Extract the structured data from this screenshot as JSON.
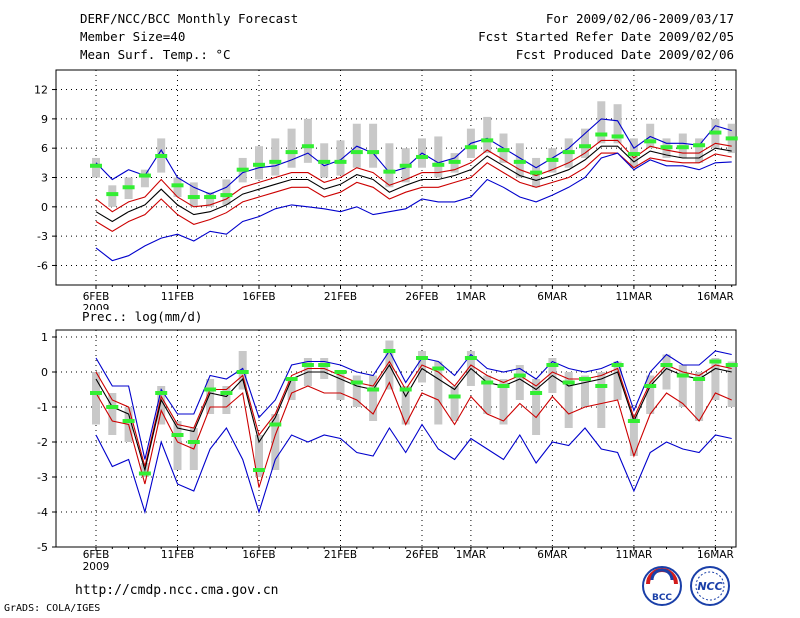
{
  "header": {
    "title": "DERF/NCC/BCC Monthly Forecast",
    "member_size": "Member Size=40",
    "variable": "Mean Surf. Temp.: °C",
    "period": "For 2009/02/06-2009/03/17",
    "fcst_started": "Fcst Started Refer Date 2009/02/05",
    "fcst_produced": "Fcst Produced Date 2009/02/06"
  },
  "footer": {
    "url": "http://cmdp.ncc.cma.gov.cn",
    "grads": "GrADS: COLA/IGES",
    "logo_bcc": "BCC",
    "logo_ncc": "NCC"
  },
  "chart_data": [
    {
      "type": "line",
      "title": "Mean Surf. Temp.: °C",
      "ylim": [
        -8,
        14
      ],
      "yticks": [
        -6,
        -3,
        0,
        3,
        6,
        9,
        12
      ],
      "grid": true,
      "xtick_labels": [
        {
          "day": 0,
          "label": "6FEB"
        },
        {
          "day": 5,
          "label": "11FEB"
        },
        {
          "day": 10,
          "label": "16FEB"
        },
        {
          "day": 15,
          "label": "21FEB"
        },
        {
          "day": 20,
          "label": "26FEB"
        },
        {
          "day": 23,
          "label": "1MAR"
        },
        {
          "day": 28,
          "label": "6MAR"
        },
        {
          "day": 33,
          "label": "11MAR"
        },
        {
          "day": 38,
          "label": "16MAR"
        }
      ],
      "year_label": "2009",
      "series": [
        {
          "name": "ensemble-max",
          "color": "#0000cc",
          "values": [
            4.5,
            2.8,
            3.8,
            3.2,
            5.8,
            3.0,
            2.0,
            1.3,
            2.0,
            3.5,
            4.0,
            4.2,
            4.8,
            5.5,
            4.2,
            4.8,
            6.2,
            5.5,
            3.5,
            4.0,
            5.5,
            4.5,
            5.0,
            6.5,
            7.0,
            6.0,
            5.0,
            4.0,
            5.0,
            6.0,
            7.5,
            9.0,
            8.8,
            6.0,
            7.2,
            6.5,
            6.5,
            6.3,
            8.3,
            7.8
          ]
        },
        {
          "name": "plus-sigma",
          "color": "#cc0000",
          "values": [
            0.8,
            -0.5,
            0.5,
            1.0,
            2.8,
            1.0,
            0.0,
            0.2,
            0.8,
            2.0,
            2.5,
            3.0,
            3.5,
            3.5,
            2.5,
            3.0,
            4.0,
            3.5,
            2.2,
            2.8,
            3.5,
            3.5,
            3.8,
            4.5,
            5.8,
            4.8,
            3.8,
            3.2,
            3.8,
            4.5,
            5.5,
            6.8,
            6.8,
            5.0,
            6.2,
            5.8,
            5.5,
            5.5,
            6.5,
            6.2
          ]
        },
        {
          "name": "ensemble-mean",
          "color": "#000000",
          "values": [
            -0.5,
            -1.5,
            -0.5,
            0.2,
            1.8,
            0.2,
            -0.8,
            -0.5,
            0.2,
            1.3,
            1.8,
            2.3,
            2.8,
            2.8,
            1.8,
            2.3,
            3.3,
            2.8,
            1.5,
            2.2,
            2.8,
            2.8,
            3.2,
            3.8,
            5.2,
            4.2,
            3.2,
            2.7,
            3.2,
            3.8,
            4.8,
            6.2,
            6.2,
            4.6,
            5.7,
            5.3,
            5.0,
            5.0,
            6.0,
            5.7
          ]
        },
        {
          "name": "minus-sigma",
          "color": "#cc0000",
          "values": [
            -1.5,
            -2.5,
            -1.5,
            -0.8,
            0.8,
            -0.8,
            -1.8,
            -1.3,
            -0.6,
            0.5,
            1.0,
            1.5,
            2.0,
            2.0,
            1.0,
            1.5,
            2.5,
            2.0,
            0.8,
            1.5,
            2.0,
            2.0,
            2.5,
            3.0,
            4.5,
            3.5,
            2.5,
            2.0,
            2.5,
            3.0,
            4.0,
            5.5,
            5.5,
            4.0,
            5.0,
            4.7,
            4.5,
            4.5,
            5.4,
            5.1
          ]
        },
        {
          "name": "ensemble-min",
          "color": "#0000cc",
          "values": [
            -4.2,
            -5.5,
            -5.0,
            -4.0,
            -3.2,
            -2.8,
            -3.5,
            -2.5,
            -2.8,
            -1.5,
            -1.0,
            -0.2,
            0.2,
            0.0,
            -0.2,
            -0.5,
            0.0,
            -0.8,
            -0.5,
            -0.2,
            0.8,
            0.5,
            0.5,
            1.0,
            2.8,
            2.0,
            1.0,
            0.5,
            1.2,
            2.0,
            3.0,
            5.0,
            5.5,
            3.8,
            4.8,
            4.2,
            4.2,
            3.8,
            4.5,
            4.6
          ]
        }
      ],
      "bars": {
        "name": "observation-spread",
        "color": "#c8c8c8",
        "low": [
          3.0,
          0.0,
          0.8,
          2.0,
          3.5,
          1.0,
          0.0,
          0.0,
          0.2,
          2.5,
          2.8,
          3.2,
          4.0,
          4.5,
          3.0,
          3.2,
          4.0,
          4.0,
          2.0,
          2.5,
          4.0,
          3.0,
          3.5,
          5.0,
          5.5,
          4.5,
          3.0,
          2.0,
          3.5,
          4.0,
          5.0,
          6.5,
          6.5,
          4.0,
          6.0,
          5.0,
          5.0,
          4.5,
          6.0,
          5.5
        ],
        "high": [
          5.0,
          2.2,
          3.0,
          3.8,
          7.0,
          3.0,
          2.5,
          1.5,
          2.8,
          5.0,
          6.2,
          7.0,
          8.0,
          9.0,
          6.5,
          6.8,
          8.5,
          8.5,
          6.5,
          6.0,
          7.0,
          7.2,
          5.5,
          8.0,
          9.2,
          7.5,
          6.5,
          5.0,
          6.0,
          7.0,
          8.0,
          10.8,
          10.5,
          7.0,
          8.5,
          7.0,
          7.5,
          7.0,
          9.0,
          8.5
        ]
      },
      "marks": {
        "name": "green-marks",
        "color": "#33ee33",
        "values": [
          4.2,
          1.3,
          2.0,
          3.2,
          5.2,
          2.2,
          1.0,
          1.0,
          1.2,
          3.8,
          4.3,
          4.6,
          5.6,
          6.2,
          4.6,
          4.6,
          5.6,
          5.6,
          3.6,
          4.2,
          5.1,
          4.3,
          4.6,
          6.1,
          6.8,
          5.8,
          4.6,
          3.5,
          4.8,
          5.6,
          6.2,
          7.4,
          7.2,
          5.4,
          6.7,
          6.1,
          6.1,
          6.3,
          7.6,
          7.0
        ]
      }
    },
    {
      "type": "line",
      "title": "Prec.: log(mm/d)",
      "ylim": [
        -5,
        1.2
      ],
      "yticks": [
        -5,
        -4,
        -3,
        -2,
        -1,
        0,
        1
      ],
      "grid": true,
      "xtick_labels": [
        {
          "day": 0,
          "label": "6FEB"
        },
        {
          "day": 5,
          "label": "11FEB"
        },
        {
          "day": 10,
          "label": "16FEB"
        },
        {
          "day": 15,
          "label": "21FEB"
        },
        {
          "day": 20,
          "label": "26FEB"
        },
        {
          "day": 23,
          "label": "1MAR"
        },
        {
          "day": 28,
          "label": "6MAR"
        },
        {
          "day": 33,
          "label": "11MAR"
        },
        {
          "day": 38,
          "label": "16MAR"
        }
      ],
      "year_label": "2009",
      "series": [
        {
          "name": "ensemble-max",
          "color": "#0000cc",
          "values": [
            0.4,
            -0.4,
            -0.4,
            -2.5,
            -0.5,
            -1.2,
            -1.2,
            -0.1,
            -0.2,
            0.1,
            -1.3,
            -0.8,
            0.2,
            0.3,
            0.3,
            0.2,
            0.0,
            -0.1,
            0.6,
            -0.3,
            0.4,
            0.3,
            -0.1,
            0.5,
            0.1,
            0.0,
            0.1,
            -0.2,
            0.3,
            0.1,
            0.0,
            0.1,
            0.3,
            -1.1,
            0.0,
            0.5,
            0.2,
            0.2,
            0.6,
            0.5
          ]
        },
        {
          "name": "plus-sigma",
          "color": "#cc0000",
          "values": [
            0.0,
            -0.8,
            -1.0,
            -2.7,
            -0.7,
            -1.5,
            -1.6,
            -0.5,
            -0.5,
            -0.1,
            -1.8,
            -1.2,
            -0.1,
            0.1,
            0.1,
            -0.1,
            -0.3,
            -0.4,
            0.3,
            -0.5,
            0.2,
            0.0,
            -0.4,
            0.2,
            -0.1,
            -0.3,
            -0.1,
            -0.4,
            0.0,
            -0.2,
            -0.2,
            -0.1,
            0.1,
            -1.3,
            -0.3,
            0.2,
            0.0,
            -0.1,
            0.2,
            0.1
          ]
        },
        {
          "name": "ensemble-mean",
          "color": "#000000",
          "values": [
            -0.2,
            -1.0,
            -1.2,
            -2.8,
            -0.8,
            -1.6,
            -1.7,
            -0.6,
            -0.7,
            -0.2,
            -2.0,
            -1.3,
            -0.2,
            0.0,
            0.0,
            -0.2,
            -0.4,
            -0.5,
            0.2,
            -0.7,
            0.1,
            -0.2,
            -0.5,
            0.1,
            -0.3,
            -0.4,
            -0.2,
            -0.5,
            -0.1,
            -0.4,
            -0.3,
            -0.2,
            0.0,
            -1.4,
            -0.4,
            0.1,
            -0.1,
            -0.2,
            0.1,
            0.0
          ]
        },
        {
          "name": "minus-sigma",
          "color": "#cc0000",
          "values": [
            -0.6,
            -1.4,
            -1.5,
            -3.2,
            -1.1,
            -2.0,
            -2.2,
            -1.0,
            -1.0,
            -0.6,
            -3.3,
            -1.8,
            -0.6,
            -0.4,
            -0.6,
            -0.6,
            -0.8,
            -1.2,
            -0.3,
            -1.5,
            -0.6,
            -0.8,
            -1.5,
            -0.7,
            -1.2,
            -1.4,
            -0.9,
            -1.3,
            -0.7,
            -1.2,
            -1.0,
            -0.9,
            -0.8,
            -2.4,
            -1.2,
            -0.6,
            -0.9,
            -1.4,
            -0.6,
            -0.8
          ]
        },
        {
          "name": "ensemble-min",
          "color": "#0000cc",
          "values": [
            -1.8,
            -2.7,
            -2.5,
            -4.0,
            -2.0,
            -3.2,
            -3.4,
            -2.2,
            -1.6,
            -2.5,
            -4.0,
            -2.5,
            -1.8,
            -2.0,
            -1.8,
            -1.9,
            -2.3,
            -2.4,
            -1.6,
            -2.3,
            -1.5,
            -2.2,
            -2.5,
            -1.9,
            -2.2,
            -2.5,
            -1.8,
            -2.6,
            -2.0,
            -2.1,
            -1.6,
            -2.2,
            -2.3,
            -3.4,
            -2.3,
            -2.0,
            -2.2,
            -2.3,
            -1.8,
            -1.9
          ]
        }
      ],
      "bars": {
        "name": "observation-spread",
        "color": "#c8c8c8",
        "low": [
          -1.5,
          -1.8,
          -2.0,
          -3.0,
          -1.5,
          -2.8,
          -2.8,
          -1.2,
          -1.2,
          -0.5,
          -3.0,
          -2.8,
          -0.8,
          -0.4,
          -0.2,
          -0.8,
          -1.0,
          -1.4,
          -0.5,
          -1.5,
          -0.3,
          -1.5,
          -1.4,
          -0.4,
          -1.2,
          -1.5,
          -0.8,
          -1.8,
          -0.6,
          -1.6,
          -1.0,
          -1.6,
          -0.8,
          -2.4,
          -1.2,
          -0.5,
          -1.0,
          -1.4,
          -0.8,
          -1.0
        ],
        "high": [
          0.0,
          -0.6,
          -1.0,
          -2.6,
          -0.4,
          -1.4,
          -1.6,
          -0.2,
          -0.4,
          0.6,
          -1.8,
          -1.2,
          -0.2,
          0.4,
          0.4,
          0.0,
          -0.1,
          -0.1,
          0.9,
          -0.4,
          0.6,
          0.3,
          -0.4,
          0.6,
          -0.1,
          -0.2,
          0.2,
          -0.2,
          0.4,
          0.0,
          -0.1,
          0.0,
          0.3,
          -1.2,
          -0.1,
          0.5,
          0.2,
          0.0,
          0.4,
          0.3
        ]
      },
      "marks": {
        "name": "green-marks",
        "color": "#33ee33",
        "values": [
          -0.6,
          -1.0,
          -1.4,
          -2.9,
          -0.6,
          -1.8,
          -2.0,
          -0.5,
          -0.6,
          0.0,
          -2.8,
          -1.5,
          -0.2,
          0.2,
          0.2,
          0.0,
          -0.3,
          -0.5,
          0.6,
          -0.5,
          0.4,
          0.1,
          -0.7,
          0.4,
          -0.3,
          -0.4,
          -0.1,
          -0.6,
          0.2,
          -0.3,
          -0.2,
          -0.4,
          0.2,
          -1.4,
          -0.4,
          0.2,
          -0.1,
          -0.2,
          0.3,
          0.2
        ]
      }
    }
  ]
}
